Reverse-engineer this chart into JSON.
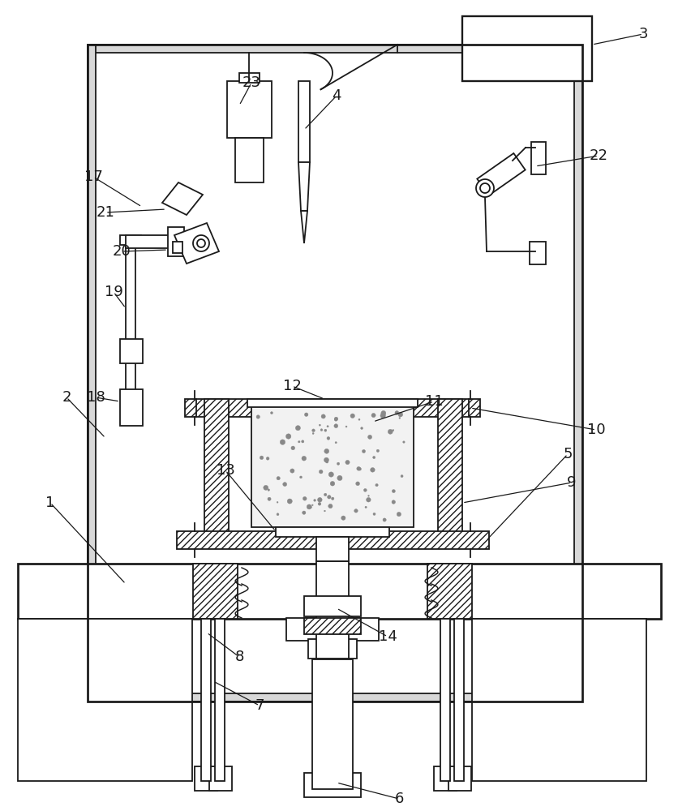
{
  "bg_color": "#ffffff",
  "lc": "#1a1a1a",
  "lw": 1.3,
  "fs": 13
}
